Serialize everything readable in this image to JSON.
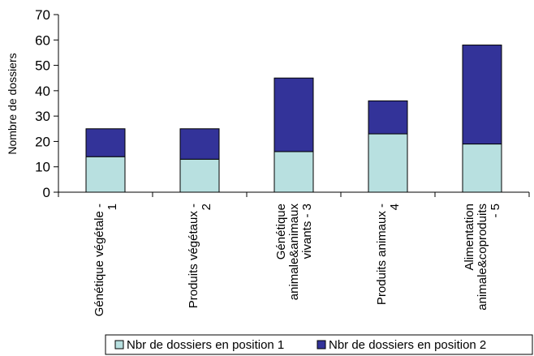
{
  "chart_data": {
    "type": "bar",
    "stacked": true,
    "categories": [
      [
        "Génétique végétale -",
        "1"
      ],
      [
        "Produits végétaux -",
        "2"
      ],
      [
        "Génétique",
        "animale&animaux",
        "vivants - 3"
      ],
      [
        "Produits animaux -",
        "4"
      ],
      [
        "Alimentation",
        "animale&coproduits",
        "- 5"
      ]
    ],
    "series": [
      {
        "name": "Nbr de dossiers en position 1",
        "values": [
          14,
          13,
          16,
          23,
          19
        ],
        "color": "#b8e0e0"
      },
      {
        "name": "Nbr de dossiers en position 2",
        "values": [
          11,
          12,
          29,
          13,
          39
        ],
        "color": "#333399"
      }
    ],
    "ylabel": "Nombre de dossiers",
    "ylim": [
      0,
      70
    ],
    "yticks": [
      0,
      10,
      20,
      30,
      40,
      50,
      60,
      70
    ],
    "grid": false,
    "legend": "bottom"
  }
}
